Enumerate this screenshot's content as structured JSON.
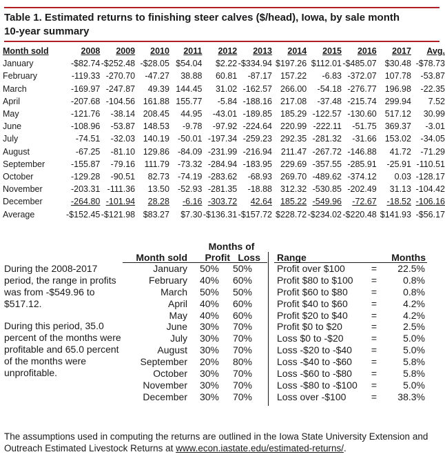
{
  "title": {
    "line1": "Table 1. Estimated returns to finishing steer calves ($/head), Iowa, by sale month",
    "line2": "10-year summary"
  },
  "main_table": {
    "headers": [
      "Month sold",
      "2008",
      "2009",
      "2010",
      "2011",
      "2012",
      "2013",
      "2014",
      "2015",
      "2016",
      "2017",
      "Avg."
    ],
    "rows": [
      [
        "January",
        "-$82.74",
        "-$252.48",
        "-$28.05",
        "$54.04",
        "$2.22",
        "-$334.94",
        "$197.26",
        "$112.01",
        "-$485.07",
        "$30.48",
        "-$78.73"
      ],
      [
        "February",
        "-119.33",
        "-270.70",
        "-47.27",
        "38.88",
        "60.81",
        "-87.17",
        "157.22",
        "-6.83",
        "-372.07",
        "107.78",
        "-53.87"
      ],
      [
        "March",
        "-169.97",
        "-247.87",
        "49.39",
        "144.45",
        "31.02",
        "-162.57",
        "266.00",
        "-54.18",
        "-276.77",
        "196.98",
        "-22.35"
      ],
      [
        "April",
        "-207.68",
        "-104.56",
        "161.88",
        "155.77",
        "-5.84",
        "-188.16",
        "217.08",
        "-37.48",
        "-215.74",
        "299.94",
        "7.52"
      ],
      [
        "May",
        "-121.76",
        "-38.14",
        "208.45",
        "44.95",
        "-43.01",
        "-189.85",
        "185.29",
        "-122.57",
        "-130.60",
        "517.12",
        "30.99"
      ],
      [
        "June",
        "-108.96",
        "-53.87",
        "148.53",
        "-9.78",
        "-97.92",
        "-224.64",
        "220.99",
        "-222.11",
        "-51.75",
        "369.37",
        "-3.01"
      ],
      [
        "July",
        "-74.51",
        "-32.03",
        "140.19",
        "-50.01",
        "-197.34",
        "-259.23",
        "292.35",
        "-281.32",
        "-31.66",
        "153.02",
        "-34.05"
      ],
      [
        "August",
        "-67.25",
        "-81.10",
        "129.86",
        "-84.09",
        "-231.99",
        "-216.94",
        "211.47",
        "-267.72",
        "-146.88",
        "41.72",
        "-71.29"
      ],
      [
        "September",
        "-155.87",
        "-79.16",
        "111.79",
        "-73.32",
        "-284.94",
        "-183.95",
        "229.69",
        "-357.55",
        "-285.91",
        "-25.91",
        "-110.51"
      ],
      [
        "October",
        "-129.28",
        "-90.51",
        "82.73",
        "-74.19",
        "-283.62",
        "-68.93",
        "269.70",
        "-489.62",
        "-374.12",
        "0.03",
        "-128.17"
      ],
      [
        "November",
        "-203.31",
        "-111.36",
        "13.50",
        "-52.93",
        "-281.35",
        "-18.88",
        "312.32",
        "-530.85",
        "-202.49",
        "31.13",
        "-104.42"
      ],
      [
        "December",
        "-264.80",
        "-101.94",
        "28.28",
        "-6.16",
        "-303.72",
        "42.64",
        "185.22",
        "-549.96",
        "-72.67",
        "-18.52",
        "-106.16"
      ],
      [
        "Average",
        "-$152.45",
        "-$121.98",
        "$83.27",
        "$7.30",
        "-$136.31",
        "-$157.72",
        "$228.72",
        "-$234.02",
        "-$220.48",
        "$141.93",
        "-$56.17"
      ]
    ]
  },
  "notes": {
    "p1": "During the 2008-2017 period, the range in profits was from -$549.96 to $517.12.",
    "p2": "During this period, 35.0 percent of the months were profitable and 65.0 percent of the months were unprofitable."
  },
  "months_of": {
    "header_top": "Months of",
    "col_month": "Month sold",
    "col_profit": "Profit",
    "col_loss": "Loss",
    "rows": [
      [
        "January",
        "50%",
        "50%"
      ],
      [
        "February",
        "40%",
        "60%"
      ],
      [
        "March",
        "50%",
        "50%"
      ],
      [
        "April",
        "40%",
        "60%"
      ],
      [
        "May",
        "40%",
        "60%"
      ],
      [
        "June",
        "30%",
        "70%"
      ],
      [
        "July",
        "30%",
        "70%"
      ],
      [
        "August",
        "30%",
        "70%"
      ],
      [
        "September",
        "20%",
        "80%"
      ],
      [
        "October",
        "30%",
        "70%"
      ],
      [
        "November",
        "30%",
        "70%"
      ],
      [
        "December",
        "30%",
        "70%"
      ]
    ]
  },
  "range_table": {
    "col_range": "Range",
    "col_months": "Months",
    "eq": "=",
    "rows": [
      [
        "Profit over $100",
        "22.5%"
      ],
      [
        "Profit $80 to $100",
        "0.8%"
      ],
      [
        "Profit $60 to $80",
        "0.8%"
      ],
      [
        "Profit $40 to $60",
        "4.2%"
      ],
      [
        "Profit $20 to $40",
        "4.2%"
      ],
      [
        "Profit $0 to $20",
        "2.5%"
      ],
      [
        "Loss $0 to -$20",
        "5.0%"
      ],
      [
        "Loss -$20 to -$40",
        "5.0%"
      ],
      [
        "Loss -$40 to -$60",
        "5.8%"
      ],
      [
        "Loss -$60 to -$80",
        "5.8%"
      ],
      [
        "Loss -$80 to -$100",
        "5.0%"
      ],
      [
        "Loss over -$100",
        "38.3%"
      ]
    ]
  },
  "footer": {
    "text": "The assumptions used in computing the returns are outlined in the Iowa State University Extension and Outreach Estimated Livestock Returns at",
    "link": "www.econ.iastate.edu/estimated-returns/",
    "period": "."
  },
  "colors": {
    "accent_rule": "#b01e23",
    "text": "#1a1a1a"
  }
}
